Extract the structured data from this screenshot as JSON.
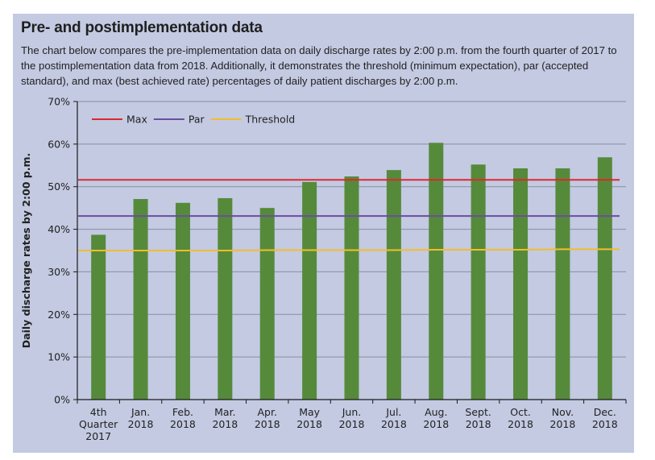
{
  "header": {
    "title": "Pre- and postimplementation data",
    "description": "The chart below compares the pre-implementation data on daily discharge rates by 2:00 p.m. from the fourth quarter of 2017 to the postimplementation data from 2018. Additionally, it demonstrates the threshold (minimum expectation), par (accepted standard), and max (best achieved rate) percentages of daily patient discharges by 2:00 p.m."
  },
  "chart_data": {
    "type": "bar",
    "title": "Pre- and postimplementation data",
    "xlabel": "",
    "ylabel": "Daily discharge rates by 2:00 p.m.",
    "ylim": [
      0,
      70
    ],
    "yticks": [
      0,
      10,
      20,
      30,
      40,
      50,
      60,
      70
    ],
    "ytick_labels": [
      "0%",
      "10%",
      "20%",
      "30%",
      "40%",
      "50%",
      "60%",
      "70%"
    ],
    "grid": true,
    "categories": [
      [
        "4th",
        "Quarter",
        "2017"
      ],
      [
        "Jan.",
        "2018"
      ],
      [
        "Feb.",
        "2018"
      ],
      [
        "Mar.",
        "2018"
      ],
      [
        "Apr.",
        "2018"
      ],
      [
        "May",
        "2018"
      ],
      [
        "Jun.",
        "2018"
      ],
      [
        "Jul.",
        "2018"
      ],
      [
        "Aug.",
        "2018"
      ],
      [
        "Sept.",
        "2018"
      ],
      [
        "Oct.",
        "2018"
      ],
      [
        "Nov.",
        "2018"
      ],
      [
        "Dec.",
        "2018"
      ]
    ],
    "series": [
      {
        "name": "Daily discharge rate",
        "type": "bar",
        "color": "#568a3b",
        "values": [
          38.7,
          47.1,
          46.2,
          47.3,
          45.0,
          51.1,
          52.4,
          53.9,
          60.3,
          55.2,
          54.3,
          54.3,
          56.9
        ]
      },
      {
        "name": "Max",
        "type": "line",
        "color": "#e0262d",
        "values": [
          51.6,
          51.6,
          51.6,
          51.6,
          51.6,
          51.6,
          51.6,
          51.6,
          51.6,
          51.6,
          51.6,
          51.6,
          51.6
        ]
      },
      {
        "name": "Par",
        "type": "line",
        "color": "#6a4ea0",
        "values": [
          43.1,
          43.1,
          43.1,
          43.1,
          43.1,
          43.1,
          43.1,
          43.1,
          43.1,
          43.1,
          43.1,
          43.1,
          43.1
        ]
      },
      {
        "name": "Threshold",
        "type": "line",
        "color": "#f3bd2b",
        "values": [
          35.0,
          35.0,
          35.0,
          35.0,
          35.1,
          35.1,
          35.1,
          35.1,
          35.2,
          35.2,
          35.2,
          35.3,
          35.3
        ]
      }
    ],
    "legend": {
      "placement": "top-left",
      "entries": [
        "Max",
        "Par",
        "Threshold"
      ]
    }
  },
  "colors": {
    "panel_background": "#c3cae2",
    "gridline": "#8a8f9f",
    "axis": "#1a1a1a"
  }
}
